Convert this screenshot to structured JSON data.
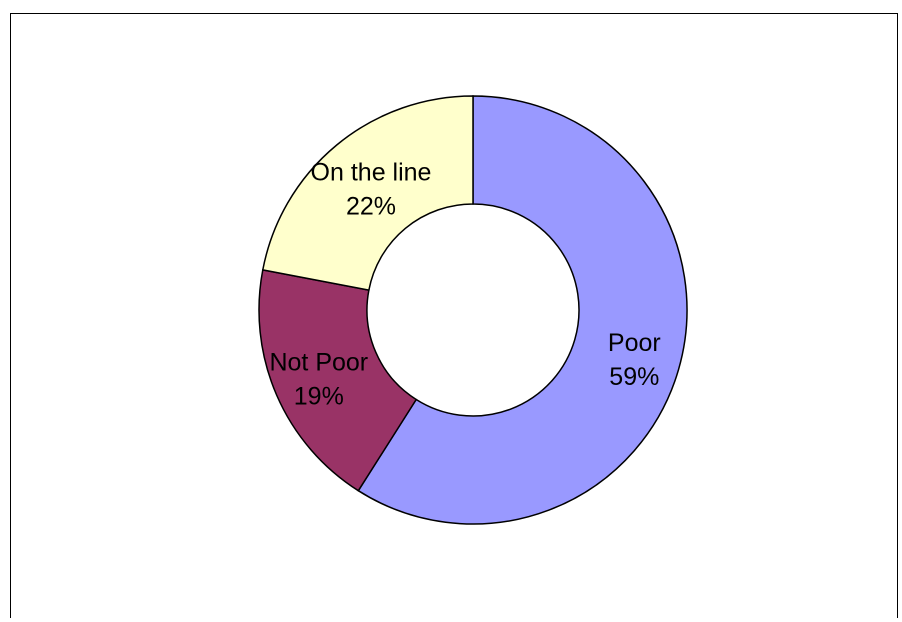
{
  "chart_data": {
    "type": "pie",
    "variant": "doughnut",
    "title": "",
    "slices": [
      {
        "label": "Poor",
        "value": 59,
        "percent_label": "59%",
        "color": "#9999FF"
      },
      {
        "label": "Not Poor",
        "value": 19,
        "percent_label": "19%",
        "color": "#993366"
      },
      {
        "label": "On the line",
        "value": 22,
        "percent_label": "22%",
        "color": "#FFFFCC"
      }
    ],
    "start_angle_deg": 0,
    "direction": "clockwise",
    "legend": "none"
  }
}
